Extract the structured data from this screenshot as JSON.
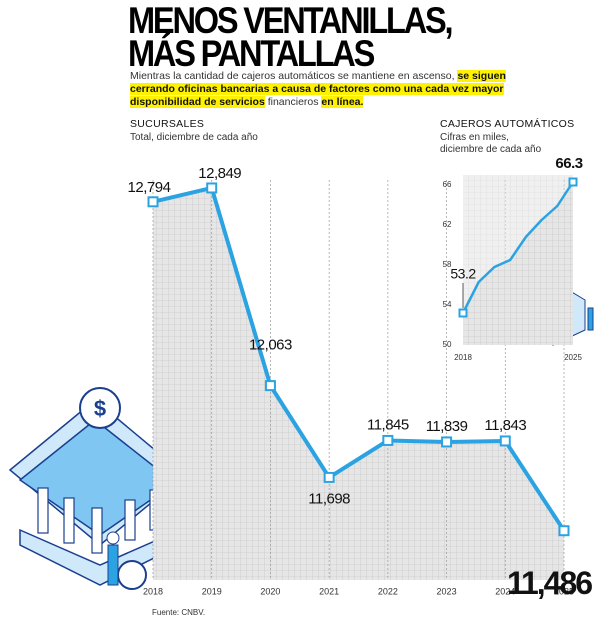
{
  "title": [
    "MENOS VENTANILLAS,",
    "MÁS PANTALLAS"
  ],
  "subtitle": [
    {
      "text": "Mientras la cantidad de cajeros automáticos se mantiene en ascenso, ",
      "highlight": false
    },
    {
      "text": "se siguen cerrando oficinas bancarias a causa de factores como una cada vez mayor disponibilidad de servicios",
      "highlight": true
    },
    {
      "text": " financieros ",
      "highlight": false
    },
    {
      "text": "en línea.",
      "highlight": true
    }
  ],
  "source": "Fuente: CNBV.",
  "chart_data": [
    {
      "type": "line",
      "title": "SUCURSALES",
      "subtitle": "Total, diciembre de cada año",
      "categories": [
        "2018",
        "2019",
        "2020",
        "2021",
        "2022",
        "2023",
        "2024",
        "2025"
      ],
      "values": [
        12794,
        12849,
        12063,
        11698,
        11845,
        11839,
        11843,
        11486
      ],
      "value_labels": [
        "12,794",
        "12,849",
        "12,063",
        "11,698",
        "11,845",
        "11,839",
        "11,843",
        "11,486"
      ],
      "color": "#2ba3e2",
      "ylim": [
        11290,
        13000
      ]
    },
    {
      "type": "line",
      "title": "CAJEROS AUTOMÁTICOS",
      "subtitle": "Cifras en miles, diciembre de cada año",
      "categories": [
        "2018",
        null,
        null,
        null,
        null,
        null,
        null,
        "2025"
      ],
      "values": [
        53.2,
        56.3,
        57.8,
        58.5,
        60.8,
        62.5,
        63.9,
        66.3
      ],
      "value_labels": [
        "53.2",
        null,
        null,
        null,
        null,
        null,
        null,
        "66.3"
      ],
      "color": "#2ba3e2",
      "ylim": [
        50,
        67
      ],
      "yticks": [
        50,
        54,
        58,
        62,
        66
      ]
    }
  ]
}
